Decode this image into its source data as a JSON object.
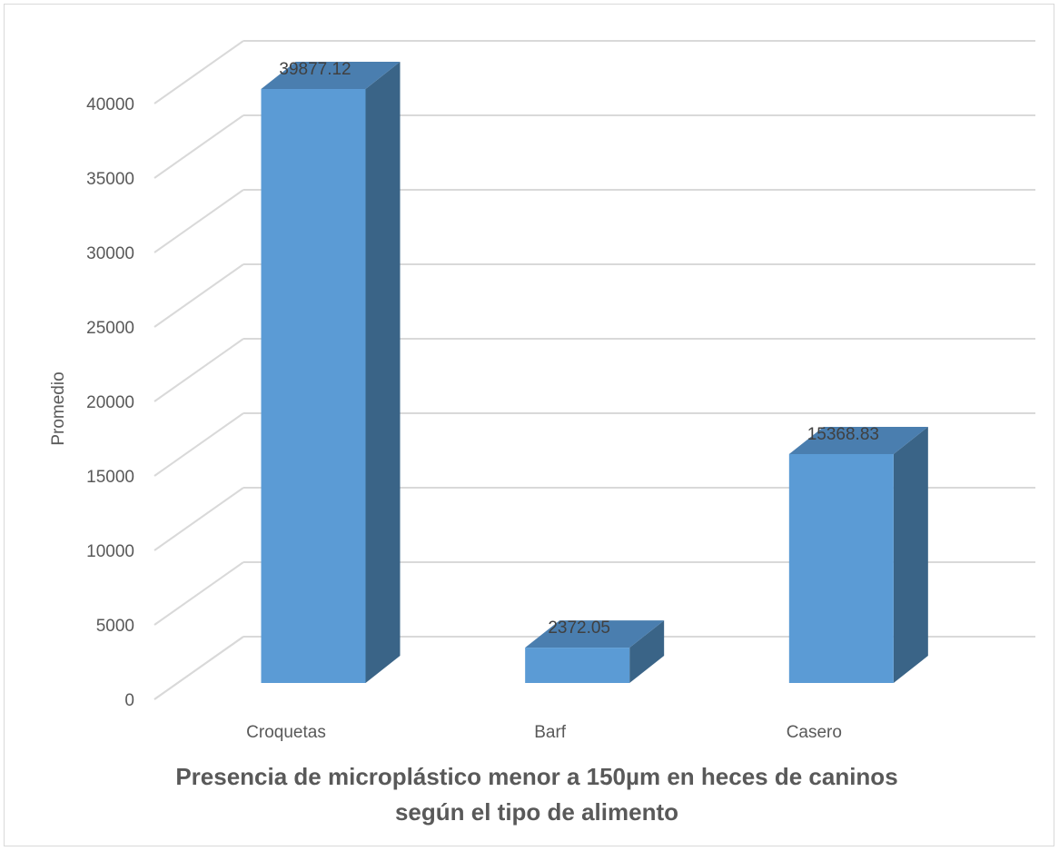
{
  "chart_data": {
    "type": "bar",
    "style": "3d-column",
    "title": "Presencia de microplástico menor a 150µm en heces de caninos",
    "subtitle": "según el tipo de alimento",
    "xlabel": "",
    "ylabel": "Promedio",
    "categories": [
      "Croquetas",
      "Barf",
      "Casero"
    ],
    "values": [
      39877.12,
      2372.05,
      15368.83
    ],
    "data_labels": [
      "39877.12",
      "2372.05",
      "15368.83"
    ],
    "ylim": [
      0,
      40000
    ],
    "yticks": [
      "0",
      "5000",
      "10000",
      "15000",
      "20000",
      "25000",
      "30000",
      "35000",
      "40000"
    ],
    "grid": true,
    "legend": "none",
    "colors": {
      "bar_front": "#5b9bd5",
      "bar_side": "#3a6487",
      "bar_top": "#4a7eaf",
      "grid": "#d9d9d9"
    }
  }
}
